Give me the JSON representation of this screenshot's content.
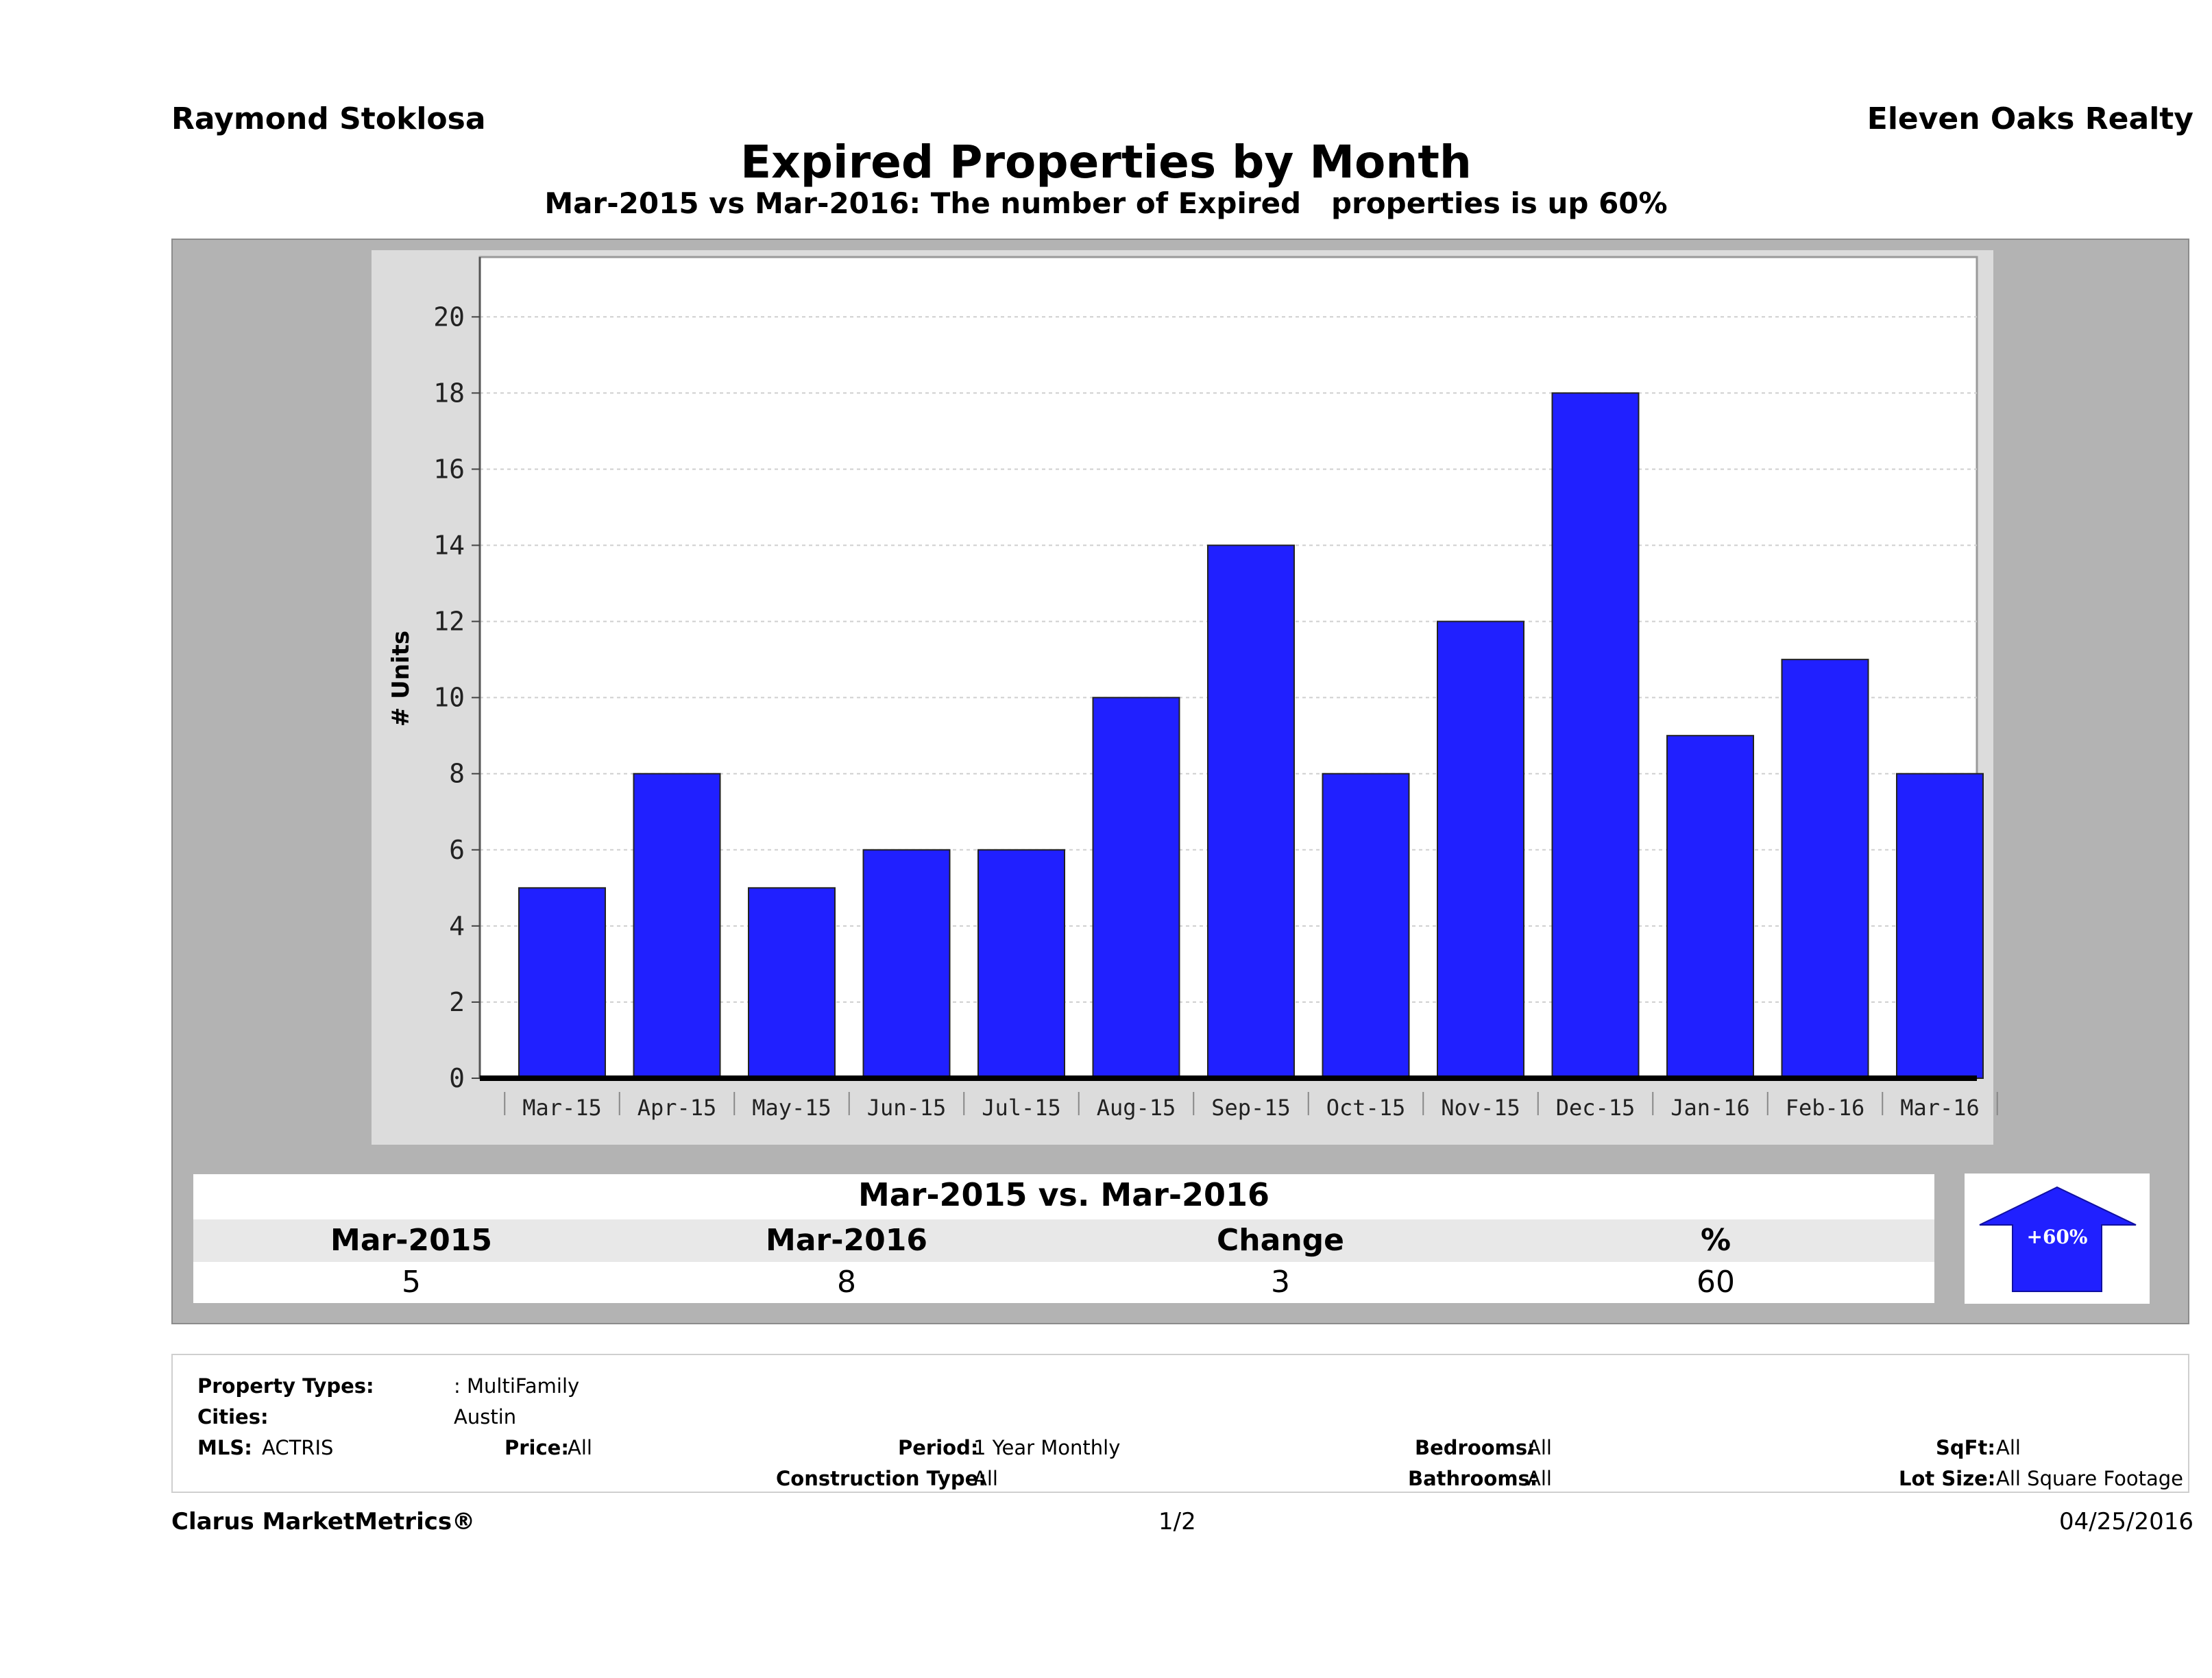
{
  "header": {
    "agent": "Raymond Stoklosa",
    "company": "Eleven Oaks Realty",
    "title": "Expired Properties by Month",
    "subtitle": "Mar-2015 vs Mar-2016: The number of Expired   properties is up 60%"
  },
  "chart_data": {
    "type": "bar",
    "categories": [
      "Mar-15",
      "Apr-15",
      "May-15",
      "Jun-15",
      "Jul-15",
      "Aug-15",
      "Sep-15",
      "Oct-15",
      "Nov-15",
      "Dec-15",
      "Jan-16",
      "Feb-16",
      "Mar-16"
    ],
    "values": [
      5,
      8,
      5,
      6,
      6,
      10,
      14,
      8,
      12,
      18,
      9,
      11,
      8
    ],
    "ylabel": "# Units",
    "ylim": [
      0,
      21.5
    ],
    "yticks": [
      0,
      2,
      4,
      6,
      8,
      10,
      12,
      14,
      16,
      18,
      20
    ],
    "bar_color": "#2020ff",
    "grid": true
  },
  "comparison": {
    "title": "Mar-2015 vs. Mar-2016",
    "headers": [
      "Mar-2015",
      "Mar-2016",
      "Change",
      "%"
    ],
    "values": [
      "5",
      "8",
      "3",
      "60"
    ],
    "badge": "+60%",
    "badge_icon": "up-arrow-icon",
    "badge_color": "#2020ff"
  },
  "filters": {
    "property_types_label": "Property Types:",
    "property_types_value": ": MultiFamily",
    "cities_label": "Cities:",
    "cities_value": "Austin",
    "mls_label": "MLS:",
    "mls_value": "ACTRIS",
    "price_label": "Price:",
    "price_value": "All",
    "period_label": "Period:",
    "period_value": "1 Year Monthly",
    "construction_label": "Construction Type:",
    "construction_value": "All",
    "bedrooms_label": "Bedrooms:",
    "bedrooms_value": "All",
    "bathrooms_label": "Bathrooms:",
    "bathrooms_value": "All",
    "sqft_label": "SqFt:",
    "sqft_value": "All",
    "lotsize_label": "Lot Size:",
    "lotsize_value": "All Square Footage"
  },
  "footer": {
    "brand": "Clarus MarketMetrics®",
    "page": "1/2",
    "date": "04/25/2016"
  }
}
